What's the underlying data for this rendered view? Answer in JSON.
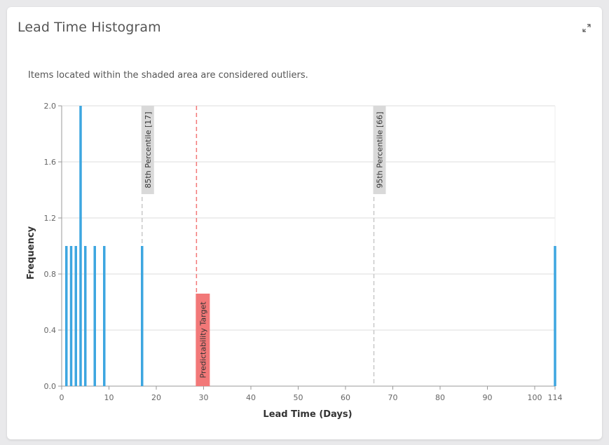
{
  "widget": {
    "title": "Lead Time Histogram",
    "subtitle": "Items located within the shaded area are considered outliers.",
    "expand_icon": "expand-arrows-icon"
  },
  "colors": {
    "bar": "#3da6e0",
    "target": "#f27878",
    "percentile_line": "#c8c8c8",
    "percentile_label_bg": "#d9d9d9",
    "grid": "#dddddd",
    "axis_text": "#666666"
  },
  "chart_data": {
    "type": "bar",
    "xlabel": "Lead Time (Days)",
    "ylabel": "Frequency",
    "xlim": [
      0,
      114
    ],
    "ylim": [
      0,
      2.0
    ],
    "xticks": [
      0,
      10,
      20,
      30,
      40,
      50,
      60,
      70,
      80,
      90,
      100,
      114
    ],
    "yticks": [
      0.0,
      0.4,
      0.8,
      1.2,
      1.6,
      2.0
    ],
    "ytick_labels": [
      "0.0",
      "0.4",
      "0.8",
      "1.2",
      "1.6",
      "2.0"
    ],
    "axis_break_after": 100,
    "grid": true,
    "bars": [
      {
        "x": 1,
        "y": 1
      },
      {
        "x": 2,
        "y": 1
      },
      {
        "x": 3,
        "y": 1
      },
      {
        "x": 4,
        "y": 2
      },
      {
        "x": 5,
        "y": 1
      },
      {
        "x": 7,
        "y": 1
      },
      {
        "x": 9,
        "y": 1
      },
      {
        "x": 17,
        "y": 1
      },
      {
        "x": 114,
        "y": 1
      }
    ],
    "percentiles": [
      {
        "label": "85th Percentile [17]",
        "value": 17
      },
      {
        "label": "95th Percentile [66]",
        "value": 66
      }
    ],
    "target": {
      "label": "Predictability Target",
      "value": 28.5
    }
  }
}
